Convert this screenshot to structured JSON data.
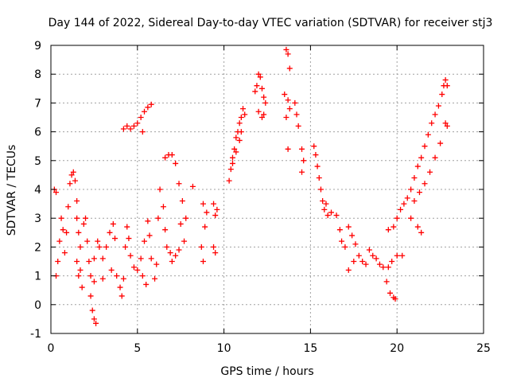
{
  "chart_data": {
    "type": "scatter",
    "title": "Day 144 of 2022, Sidereal Day-to-day VTEC variation (SDTVAR) for receiver stj3",
    "xlabel": "GPS time / hours",
    "ylabel": "SDTVAR / TECUs",
    "xlim": [
      0,
      25
    ],
    "ylim": [
      -1,
      9
    ],
    "xticks": [
      0,
      5,
      10,
      15,
      20,
      25
    ],
    "yticks": [
      -1,
      0,
      1,
      2,
      3,
      4,
      5,
      6,
      7,
      8,
      9
    ],
    "grid": true,
    "marker": "plus",
    "series": [
      {
        "name": "SDTVAR",
        "color": "#ff0000",
        "points": [
          [
            0.2,
            4.0
          ],
          [
            0.3,
            3.9
          ],
          [
            0.3,
            1.0
          ],
          [
            0.4,
            1.5
          ],
          [
            0.5,
            2.2
          ],
          [
            0.6,
            3.0
          ],
          [
            0.7,
            2.6
          ],
          [
            0.8,
            1.8
          ],
          [
            0.9,
            2.5
          ],
          [
            1.0,
            3.4
          ],
          [
            1.1,
            4.2
          ],
          [
            1.2,
            4.5
          ],
          [
            1.3,
            4.6
          ],
          [
            1.4,
            4.3
          ],
          [
            1.5,
            3.6
          ],
          [
            1.5,
            3.0
          ],
          [
            1.6,
            2.5
          ],
          [
            1.7,
            2.0
          ],
          [
            1.7,
            1.2
          ],
          [
            1.8,
            0.6
          ],
          [
            1.6,
            1.0
          ],
          [
            1.5,
            1.5
          ],
          [
            1.9,
            2.8
          ],
          [
            2.0,
            3.0
          ],
          [
            2.1,
            2.2
          ],
          [
            2.2,
            1.5
          ],
          [
            2.3,
            0.3
          ],
          [
            2.4,
            -0.2
          ],
          [
            2.5,
            -0.5
          ],
          [
            2.6,
            -0.65
          ],
          [
            2.3,
            1.0
          ],
          [
            2.5,
            1.6
          ],
          [
            2.7,
            2.2
          ],
          [
            2.8,
            2.0
          ],
          [
            3.0,
            1.6
          ],
          [
            3.2,
            2.0
          ],
          [
            3.4,
            2.5
          ],
          [
            3.6,
            2.8
          ],
          [
            3.7,
            2.3
          ],
          [
            3.5,
            1.2
          ],
          [
            3.0,
            0.9
          ],
          [
            2.5,
            0.8
          ],
          [
            3.8,
            1.0
          ],
          [
            4.0,
            0.6
          ],
          [
            4.1,
            0.3
          ],
          [
            4.2,
            0.9
          ],
          [
            4.3,
            2.0
          ],
          [
            4.4,
            2.7
          ],
          [
            4.5,
            2.3
          ],
          [
            4.6,
            1.7
          ],
          [
            4.8,
            1.3
          ],
          [
            5.0,
            1.2
          ],
          [
            5.2,
            1.6
          ],
          [
            5.4,
            2.2
          ],
          [
            5.6,
            2.9
          ],
          [
            5.7,
            2.4
          ],
          [
            5.8,
            1.6
          ],
          [
            6.0,
            0.9
          ],
          [
            6.1,
            1.4
          ],
          [
            6.2,
            3.0
          ],
          [
            6.3,
            4.0
          ],
          [
            6.5,
            3.4
          ],
          [
            6.6,
            2.6
          ],
          [
            6.7,
            2.0
          ],
          [
            6.9,
            1.8
          ],
          [
            7.0,
            1.5
          ],
          [
            7.2,
            1.7
          ],
          [
            7.4,
            1.9
          ],
          [
            5.5,
            0.7
          ],
          [
            5.3,
            1.0
          ],
          [
            4.2,
            6.1
          ],
          [
            4.4,
            6.2
          ],
          [
            4.6,
            6.1
          ],
          [
            4.8,
            6.2
          ],
          [
            5.0,
            6.3
          ],
          [
            5.2,
            6.5
          ],
          [
            5.4,
            6.7
          ],
          [
            5.6,
            6.85
          ],
          [
            5.8,
            6.95
          ],
          [
            5.3,
            6.0
          ],
          [
            6.6,
            5.1
          ],
          [
            6.8,
            5.2
          ],
          [
            7.0,
            5.2
          ],
          [
            7.2,
            4.9
          ],
          [
            7.4,
            4.2
          ],
          [
            7.6,
            3.6
          ],
          [
            7.8,
            3.0
          ],
          [
            7.5,
            2.8
          ],
          [
            7.7,
            2.2
          ],
          [
            8.2,
            4.1
          ],
          [
            8.8,
            3.5
          ],
          [
            8.9,
            2.7
          ],
          [
            9.0,
            3.2
          ],
          [
            8.7,
            2.0
          ],
          [
            8.8,
            1.5
          ],
          [
            9.4,
            3.5
          ],
          [
            9.5,
            3.1
          ],
          [
            9.6,
            3.3
          ],
          [
            9.4,
            2.0
          ],
          [
            9.5,
            1.8
          ],
          [
            10.3,
            4.3
          ],
          [
            10.4,
            4.7
          ],
          [
            10.5,
            5.1
          ],
          [
            10.6,
            5.4
          ],
          [
            10.7,
            5.8
          ],
          [
            10.8,
            6.0
          ],
          [
            10.9,
            6.3
          ],
          [
            11.0,
            6.5
          ],
          [
            11.1,
            6.8
          ],
          [
            11.2,
            6.6
          ],
          [
            10.5,
            4.9
          ],
          [
            10.7,
            5.3
          ],
          [
            10.9,
            5.7
          ],
          [
            11.0,
            6.0
          ],
          [
            11.8,
            7.4
          ],
          [
            11.9,
            7.6
          ],
          [
            12.0,
            8.0
          ],
          [
            12.1,
            7.9
          ],
          [
            12.2,
            7.5
          ],
          [
            12.3,
            7.2
          ],
          [
            12.4,
            7.0
          ],
          [
            12.2,
            6.5
          ],
          [
            12.0,
            6.7
          ],
          [
            12.3,
            6.6
          ],
          [
            13.6,
            8.85
          ],
          [
            13.7,
            8.7
          ],
          [
            13.8,
            8.2
          ],
          [
            13.7,
            7.1
          ],
          [
            13.8,
            6.8
          ],
          [
            13.6,
            6.5
          ],
          [
            13.7,
            5.4
          ],
          [
            13.5,
            7.3
          ],
          [
            14.1,
            7.0
          ],
          [
            14.2,
            6.6
          ],
          [
            14.3,
            6.2
          ],
          [
            14.5,
            5.4
          ],
          [
            14.6,
            5.0
          ],
          [
            14.5,
            4.6
          ],
          [
            15.2,
            5.5
          ],
          [
            15.3,
            5.2
          ],
          [
            15.4,
            4.8
          ],
          [
            15.5,
            4.4
          ],
          [
            15.6,
            4.0
          ],
          [
            15.7,
            3.6
          ],
          [
            15.8,
            3.3
          ],
          [
            16.0,
            3.1
          ],
          [
            16.2,
            3.2
          ],
          [
            15.9,
            3.5
          ],
          [
            16.5,
            3.1
          ],
          [
            16.7,
            2.6
          ],
          [
            16.8,
            2.2
          ],
          [
            17.0,
            2.0
          ],
          [
            17.2,
            2.7
          ],
          [
            17.4,
            2.4
          ],
          [
            17.6,
            2.1
          ],
          [
            17.8,
            1.7
          ],
          [
            18.0,
            1.5
          ],
          [
            18.2,
            1.4
          ],
          [
            17.2,
            1.2
          ],
          [
            17.5,
            1.5
          ],
          [
            18.4,
            1.9
          ],
          [
            18.6,
            1.7
          ],
          [
            18.8,
            1.6
          ],
          [
            19.0,
            1.4
          ],
          [
            19.2,
            1.3
          ],
          [
            19.4,
            0.8
          ],
          [
            19.6,
            0.4
          ],
          [
            19.8,
            0.25
          ],
          [
            19.5,
            1.3
          ],
          [
            19.7,
            1.5
          ],
          [
            20.0,
            1.7
          ],
          [
            20.3,
            1.7
          ],
          [
            19.9,
            0.2
          ],
          [
            19.5,
            2.6
          ],
          [
            19.8,
            2.7
          ],
          [
            20.0,
            3.0
          ],
          [
            20.2,
            3.3
          ],
          [
            20.4,
            3.5
          ],
          [
            20.6,
            3.7
          ],
          [
            20.8,
            4.0
          ],
          [
            21.0,
            4.4
          ],
          [
            21.2,
            4.8
          ],
          [
            21.4,
            5.1
          ],
          [
            21.6,
            5.5
          ],
          [
            21.8,
            5.9
          ],
          [
            22.0,
            6.3
          ],
          [
            22.2,
            6.6
          ],
          [
            22.4,
            6.9
          ],
          [
            22.6,
            7.3
          ],
          [
            22.7,
            7.6
          ],
          [
            22.8,
            7.8
          ],
          [
            22.9,
            7.6
          ],
          [
            22.9,
            6.2
          ],
          [
            21.0,
            3.6
          ],
          [
            21.3,
            3.9
          ],
          [
            21.6,
            4.2
          ],
          [
            21.9,
            4.6
          ],
          [
            22.2,
            5.1
          ],
          [
            22.5,
            5.6
          ],
          [
            22.8,
            6.3
          ],
          [
            20.8,
            3.0
          ],
          [
            21.2,
            2.7
          ],
          [
            21.4,
            2.5
          ]
        ]
      }
    ]
  }
}
